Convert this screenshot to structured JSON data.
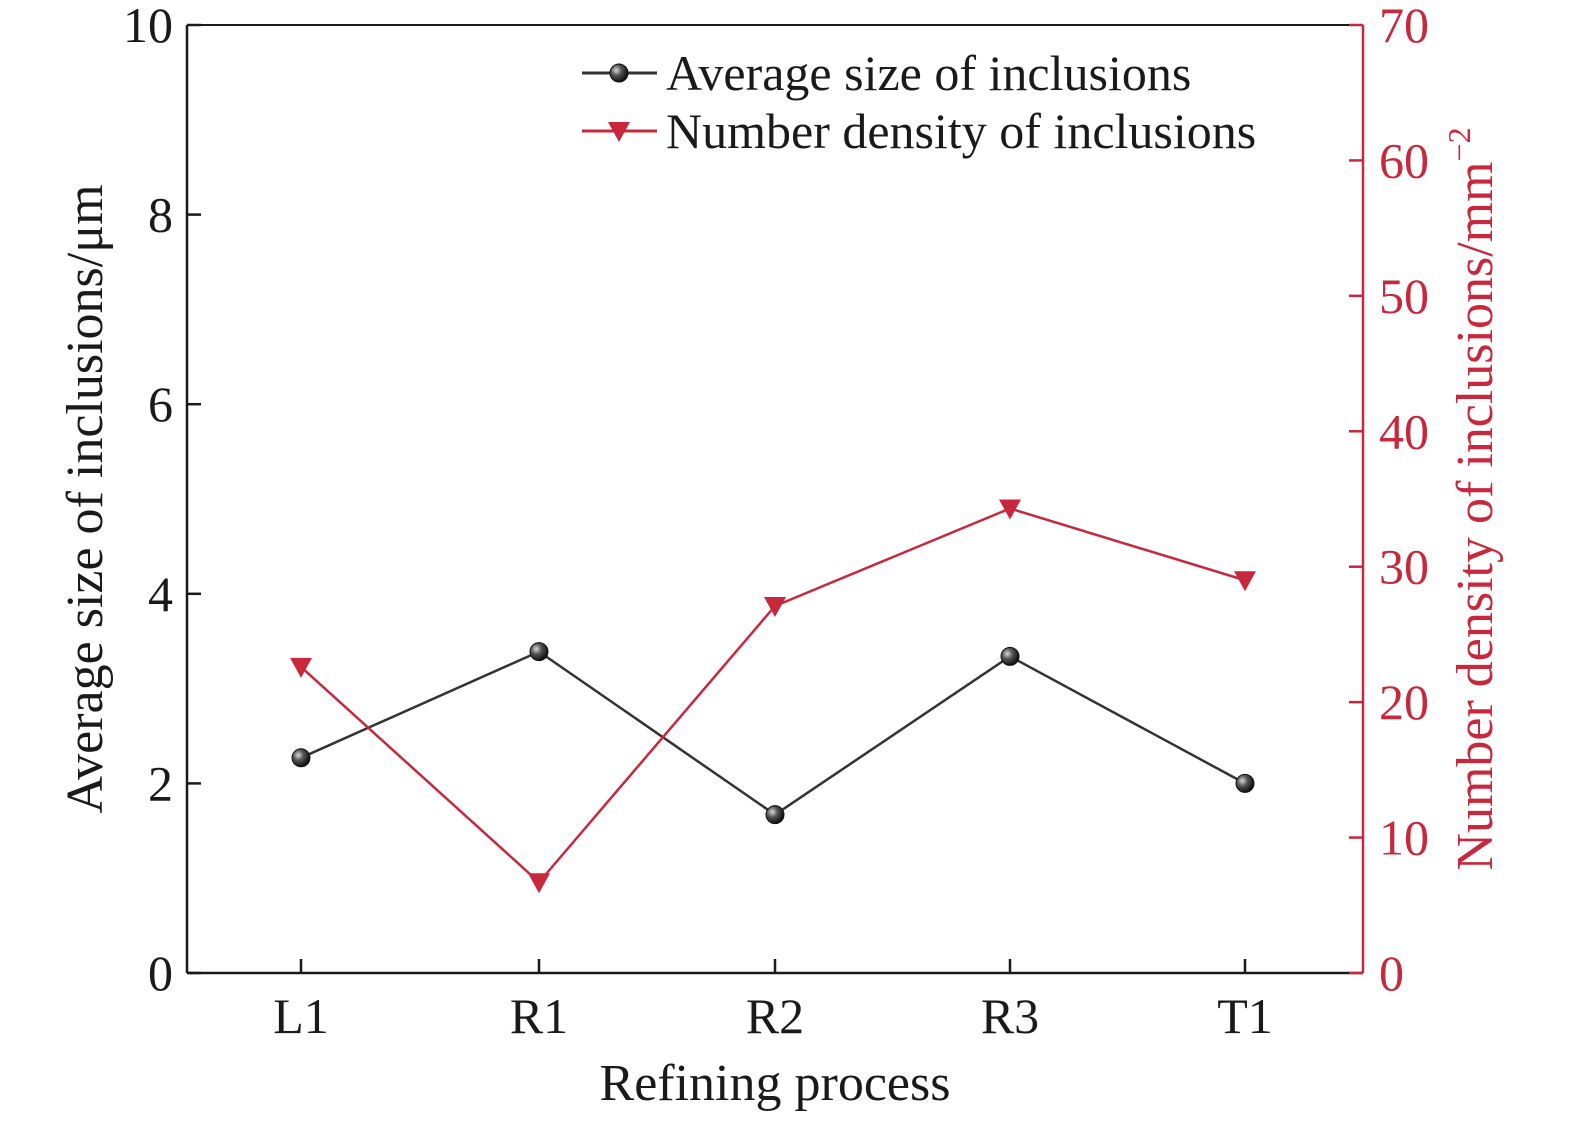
{
  "chart_data": {
    "type": "line",
    "categories": [
      "L1",
      "R1",
      "R2",
      "R3",
      "T1"
    ],
    "xlabel": "Refining process",
    "y_left": {
      "label": "Average size of inclusions/μm",
      "lim": [
        0,
        10
      ],
      "ticks": [
        "0",
        "2",
        "4",
        "6",
        "8",
        "10"
      ],
      "color": "#1a1a1a"
    },
    "y_right": {
      "label_main": "Number density of inclusions/mm",
      "label_sup": "−2",
      "lim": [
        0,
        70
      ],
      "ticks": [
        "0",
        "10",
        "20",
        "30",
        "40",
        "50",
        "60",
        "70"
      ],
      "color": "#c8283c"
    },
    "series": [
      {
        "name": "Average size of inclusions",
        "axis": "left",
        "values": [
          2.27,
          3.39,
          1.67,
          3.34,
          2.0
        ],
        "color": "#333333",
        "marker": "sphere"
      },
      {
        "name": "Number density of inclusions",
        "axis": "right",
        "values": [
          22.6,
          6.7,
          27.1,
          34.3,
          29.0
        ],
        "color": "#c8283c",
        "line_color": "#c8283c",
        "marker": "triangle-down"
      }
    ],
    "legend_position": "top-right",
    "grid": false
  }
}
